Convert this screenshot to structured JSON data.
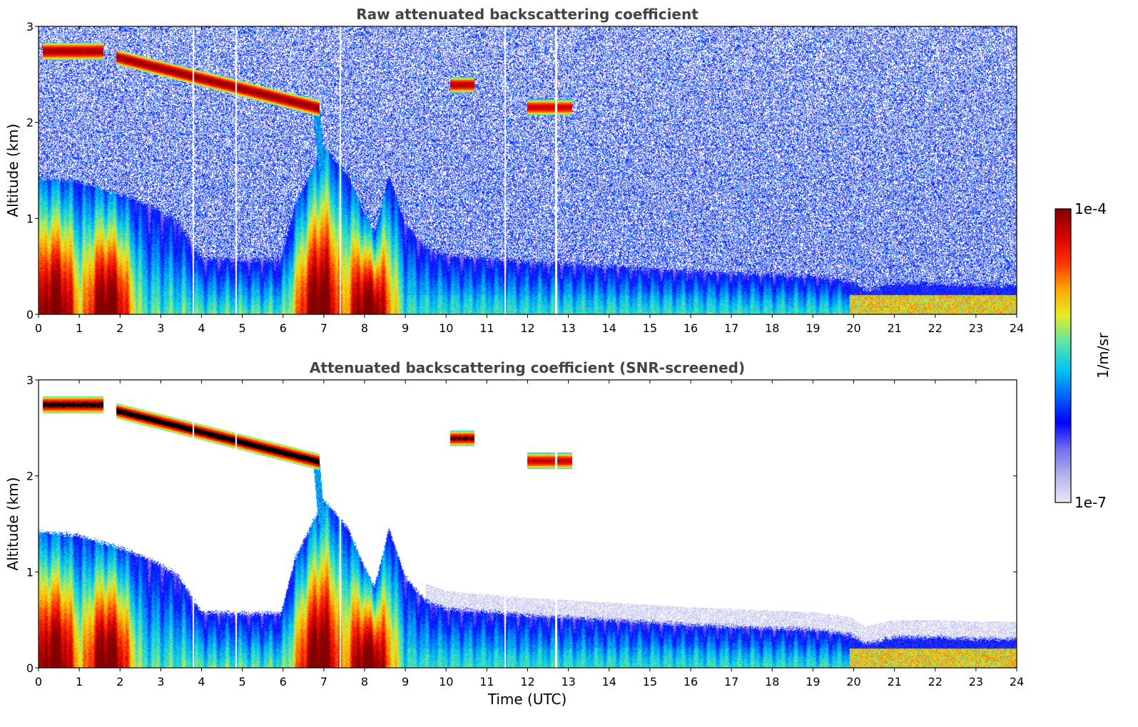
{
  "colors": {
    "colormap": [
      "#e8e8f6",
      "#b4b4ea",
      "#6f6ff2",
      "#0000ff",
      "#0066ff",
      "#00c8f0",
      "#5ce6a6",
      "#e6ec28",
      "#ffa500",
      "#ff3000",
      "#d50000",
      "#820000"
    ],
    "screened_saturation": "#000000"
  },
  "colorbar": {
    "label": "1/m/sr",
    "max_label": "1e-4",
    "min_label": "1e-7",
    "scale": "log",
    "range": [
      1e-07,
      0.0001
    ]
  },
  "chart_data": [
    {
      "type": "heatmap",
      "title": "Raw attenuated backscattering coefficient",
      "xlabel": "",
      "ylabel": "Altitude (km)",
      "xlim": [
        0,
        24
      ],
      "ylim": [
        0,
        3
      ],
      "xticks": [
        "0",
        "1",
        "2",
        "3",
        "4",
        "5",
        "6",
        "7",
        "8",
        "9",
        "10",
        "11",
        "12",
        "13",
        "14",
        "15",
        "16",
        "17",
        "18",
        "19",
        "20",
        "21",
        "22",
        "23",
        "24"
      ],
      "yticks": [
        "0",
        "1",
        "2",
        "3"
      ],
      "z_scale": "log",
      "z_range": [
        1e-07,
        0.0001
      ],
      "noise": "speckled-high-altitude",
      "gaps_at_hours": [
        3.8,
        4.85,
        7.4,
        11.45,
        12.7
      ],
      "features": [
        {
          "kind": "elevated-cloud",
          "start_time": 0.1,
          "end_time": 1.6,
          "top_km": 2.81,
          "base_km": 2.67,
          "log10_peak": -4.05
        },
        {
          "kind": "elevated-cloud",
          "start_time": 1.9,
          "end_time": 6.9,
          "top_km_start": 2.74,
          "top_km_end": 2.21,
          "base_km_start": 2.62,
          "base_km_end": 2.08,
          "log10_peak": -4.0
        },
        {
          "kind": "elevated-cloud",
          "start_time": 10.1,
          "end_time": 10.7,
          "top_km": 2.45,
          "base_km": 2.33,
          "log10_peak": -4.1
        },
        {
          "kind": "elevated-cloud",
          "start_time": 12.0,
          "end_time": 13.1,
          "top_km": 2.22,
          "base_km": 2.09,
          "log10_peak": -4.2
        },
        {
          "kind": "precipitation-fall",
          "start_time": 6.75,
          "end_time": 7.1,
          "top_km": 2.2,
          "base_km": 1.5,
          "log10_peak": -5.5
        },
        {
          "kind": "boundary-layer",
          "profile_time": [
            0,
            1,
            2,
            2.8,
            3.4,
            4.0,
            5.0,
            5.95,
            6.3,
            7.0,
            7.6,
            8.0,
            8.25,
            8.6,
            9.0,
            9.5,
            10.0,
            12.0,
            16.0,
            19.0,
            19.9,
            20.3,
            21.0,
            22.0,
            23.0,
            24.0
          ],
          "profile_top_km": [
            1.42,
            1.38,
            1.25,
            1.12,
            0.98,
            0.58,
            0.57,
            0.57,
            1.15,
            1.75,
            1.45,
            1.05,
            0.85,
            1.45,
            0.95,
            0.7,
            0.62,
            0.55,
            0.45,
            0.4,
            0.35,
            0.25,
            0.32,
            0.32,
            0.3,
            0.3
          ]
        },
        {
          "kind": "aerosol-core",
          "peak_times": [
            0.4,
            1.7,
            6.9,
            8.1,
            20.4
          ],
          "log10_peak": -4.4
        }
      ]
    },
    {
      "type": "heatmap",
      "title": "Attenuated backscattering coefficient (SNR-screened)",
      "xlabel": "Time (UTC)",
      "ylabel": "Altitude (km)",
      "xlim": [
        0,
        24
      ],
      "ylim": [
        0,
        3
      ],
      "xticks": [
        "0",
        "1",
        "2",
        "3",
        "4",
        "5",
        "6",
        "7",
        "8",
        "9",
        "10",
        "11",
        "12",
        "13",
        "14",
        "15",
        "16",
        "17",
        "18",
        "19",
        "20",
        "21",
        "22",
        "23",
        "24"
      ],
      "yticks": [
        "0",
        "1",
        "2",
        "3"
      ],
      "z_scale": "log",
      "z_range": [
        1e-07,
        0.0001
      ],
      "screened": "white",
      "saturated_cloud_color": "black"
    }
  ]
}
